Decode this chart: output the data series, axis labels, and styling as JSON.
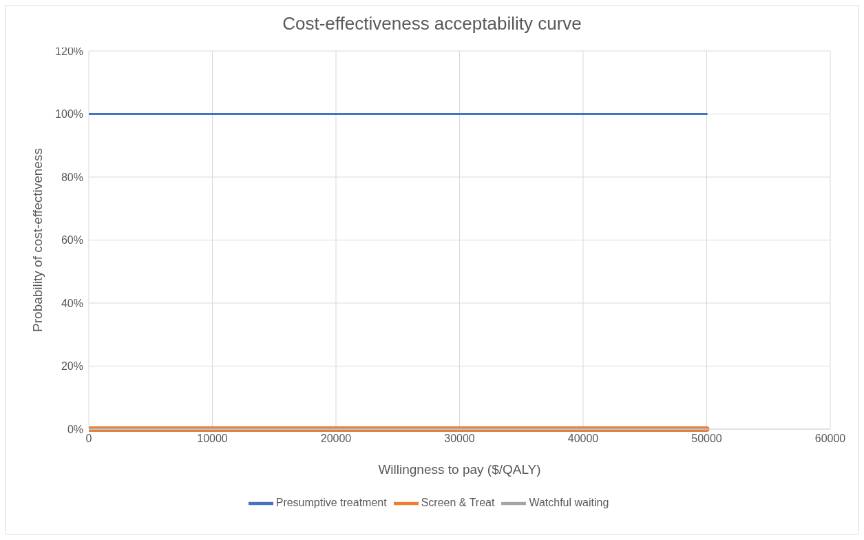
{
  "chart_data": {
    "type": "line",
    "title": "Cost-effectiveness acceptability curve",
    "xlabel": "Willingness to pay ($/QALY)",
    "ylabel": "Probability of cost-effectiveness",
    "x": [
      0,
      50000
    ],
    "series": [
      {
        "name": "Presumptive treatment",
        "color": "#4472c4",
        "values": [
          100,
          100
        ]
      },
      {
        "name": "Screen & Treat",
        "color": "#ed7d31",
        "values": [
          0,
          0
        ]
      },
      {
        "name": "Watchful waiting",
        "color": "#a5a5a5",
        "values": [
          0,
          0
        ]
      }
    ],
    "xlim": [
      0,
      60000
    ],
    "xticks": [
      0,
      10000,
      20000,
      30000,
      40000,
      50000,
      60000
    ],
    "ylim": [
      0,
      120
    ],
    "yticks": [
      {
        "value": 0,
        "label": "0%"
      },
      {
        "value": 20,
        "label": "20%"
      },
      {
        "value": 40,
        "label": "40%"
      },
      {
        "value": 60,
        "label": "60%"
      },
      {
        "value": 80,
        "label": "80%"
      },
      {
        "value": 100,
        "label": "100%"
      },
      {
        "value": 120,
        "label": "120%"
      }
    ],
    "grid": true,
    "legend": "bottom",
    "line_style": "solid"
  }
}
